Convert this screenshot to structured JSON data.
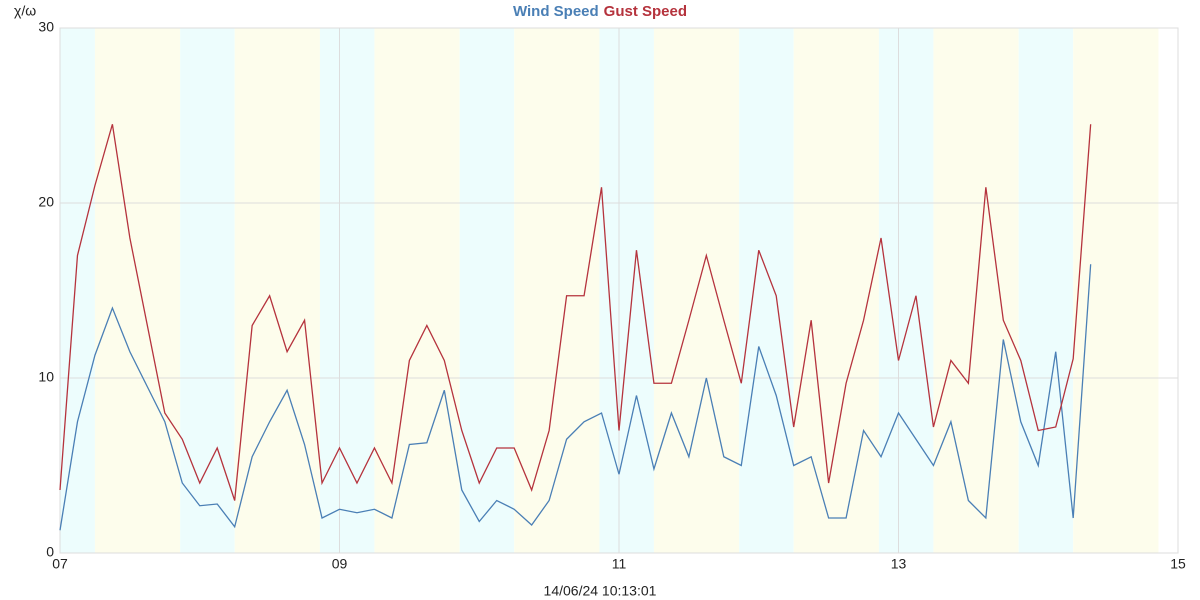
{
  "chart_data": {
    "type": "line",
    "title_from_series": true,
    "y_label": "χ/ω",
    "subtitle": "14/06/24 10:13:01",
    "x": [
      7,
      7.125,
      7.25,
      7.375,
      7.5,
      7.625,
      7.75,
      7.875,
      8,
      8.125,
      8.25,
      8.375,
      8.5,
      8.625,
      8.75,
      8.875,
      9,
      9.125,
      9.25,
      9.375,
      9.5,
      9.625,
      9.75,
      9.875,
      10,
      10.125,
      10.25,
      10.375,
      10.5,
      10.625,
      10.75,
      10.875,
      11,
      11.125,
      11.25,
      11.375,
      11.5,
      11.625,
      11.75,
      11.875,
      12,
      12.125,
      12.25,
      12.375,
      12.5,
      12.625,
      12.75,
      12.875,
      13,
      13.125,
      13.25,
      13.375,
      13.5,
      13.625,
      13.75,
      13.875,
      14,
      14.125,
      14.25,
      14.375
    ],
    "series": [
      {
        "name": "Wind Speed",
        "color": "#4a7fb5",
        "values": [
          1.3,
          7.5,
          11.3,
          14,
          11.5,
          9.5,
          7.5,
          4,
          2.7,
          2.8,
          1.5,
          5.5,
          7.5,
          9.3,
          6.2,
          2,
          2.5,
          2.3,
          2.5,
          2,
          6.2,
          6.3,
          9.3,
          3.6,
          1.8,
          3,
          2.5,
          1.6,
          3,
          6.5,
          7.5,
          8,
          4.5,
          9,
          4.8,
          8,
          5.5,
          10,
          5.5,
          5,
          11.8,
          9,
          5,
          5.5,
          2,
          2,
          7,
          5.5,
          8,
          6.5,
          5,
          7.5,
          3,
          2,
          12.2,
          7.5,
          5,
          11.5,
          2,
          16.5
        ]
      },
      {
        "name": "Gust Speed",
        "color": "#b5333d",
        "values": [
          3.6,
          17,
          21,
          24.5,
          18,
          13,
          8,
          6.5,
          4,
          6,
          3,
          13,
          14.7,
          11.5,
          13.3,
          4,
          6,
          4,
          6,
          4,
          11,
          13,
          11,
          7,
          4,
          6,
          6,
          3.6,
          7,
          14.7,
          14.7,
          20.9,
          7,
          17.3,
          9.7,
          9.7,
          13.3,
          17,
          13.3,
          9.7,
          17.3,
          14.7,
          7.2,
          13.3,
          4,
          9.7,
          13.3,
          18,
          11,
          14.7,
          7.2,
          11,
          9.7,
          20.9,
          13.3,
          11,
          7,
          7.2,
          11.1,
          24.5
        ]
      }
    ],
    "xlim": [
      7,
      15
    ],
    "xticks": [
      {
        "value": 7,
        "label": "07"
      },
      {
        "value": 9,
        "label": "09"
      },
      11,
      13,
      15
    ],
    "ylim": [
      0,
      30
    ],
    "yticks": [
      0,
      10,
      20,
      30
    ],
    "grid": true
  }
}
